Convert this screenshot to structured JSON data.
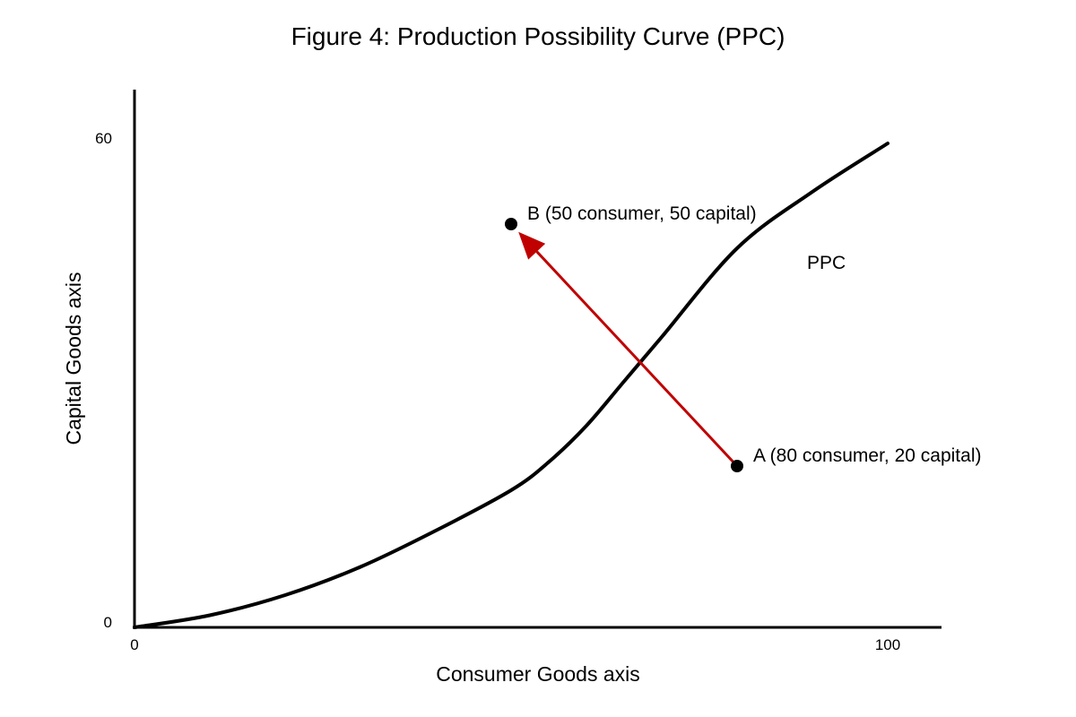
{
  "chart_data": {
    "type": "line",
    "title": "Figure 4: Production Possibility Curve (PPC)",
    "xlabel": "Consumer Goods axis",
    "ylabel": "Capital Goods axis",
    "xlim": [
      0,
      100
    ],
    "ylim": [
      0,
      60
    ],
    "x_ticks": [
      "0",
      "100"
    ],
    "y_ticks": [
      "0",
      "60"
    ],
    "grid": false,
    "series": [
      {
        "name": "PPC",
        "color": "#000000",
        "x": [
          0,
          10,
          20,
          30,
          40,
          50,
          55,
          60,
          65,
          70,
          80,
          90,
          100
        ],
        "y": [
          0,
          1.5,
          4,
          7.5,
          12,
          17,
          20.5,
          25,
          30.5,
          36,
          47,
          54,
          60
        ]
      }
    ],
    "points": [
      {
        "id": "A",
        "label": "A (80 consumer, 20 capital)",
        "x": 80,
        "y": 20
      },
      {
        "id": "B",
        "label": "B (50 consumer, 50 capital)",
        "x": 50,
        "y": 50
      }
    ],
    "arrow": {
      "from": "A",
      "to": "B",
      "color": "#c00000"
    },
    "curve_label": "PPC"
  }
}
